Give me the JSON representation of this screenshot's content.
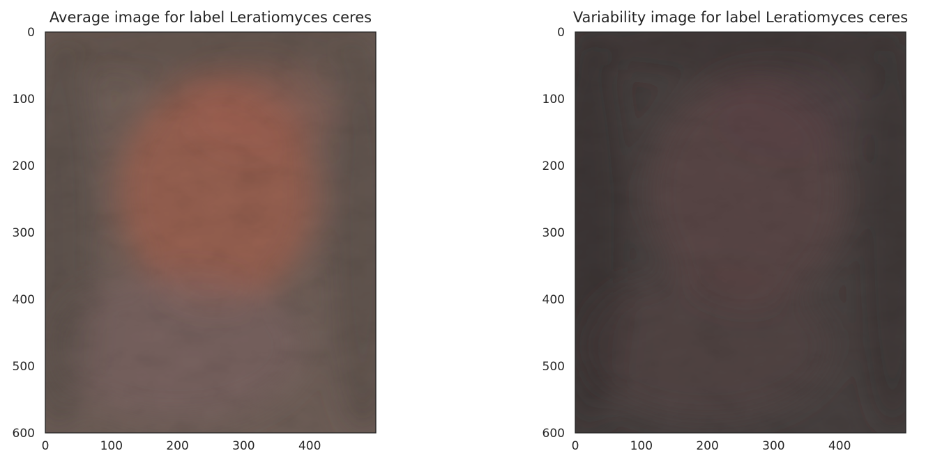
{
  "chart_data": [
    {
      "type": "image",
      "title": "Average image for label Leratiomyces ceres",
      "image_shape": [
        600,
        500
      ],
      "xlim": [
        0,
        500
      ],
      "ylim": [
        600,
        0
      ],
      "xticks": [
        0,
        100,
        200,
        300,
        400
      ],
      "yticks": [
        0,
        100,
        200,
        300,
        400,
        500,
        600
      ],
      "y_inverted": true,
      "grid": false,
      "colors": {
        "base": "#6e5e57",
        "center": "#a25f4e",
        "lower_glow": "#7d6463",
        "edge": "#4d453f"
      }
    },
    {
      "type": "image",
      "title": "Variability image for label Leratiomyces ceres",
      "image_shape": [
        600,
        500
      ],
      "xlim": [
        0,
        500
      ],
      "ylim": [
        600,
        0
      ],
      "xticks": [
        0,
        100,
        200,
        300,
        400
      ],
      "yticks": [
        0,
        100,
        200,
        300,
        400,
        500,
        600
      ],
      "y_inverted": true,
      "grid": false,
      "colors": {
        "base": "#47403f",
        "center": "#5d4547",
        "lower_glow": "#574443",
        "edge": "#302c2b"
      }
    }
  ]
}
